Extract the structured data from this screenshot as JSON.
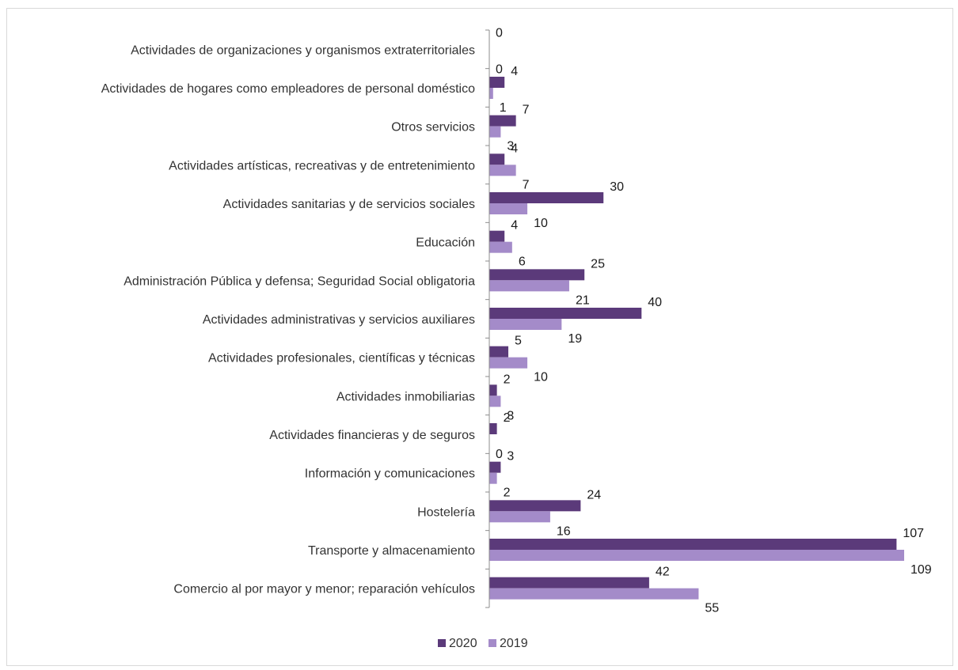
{
  "chart_data": {
    "type": "bar",
    "orientation": "horizontal",
    "title": "",
    "xlabel": "",
    "ylabel": "",
    "xlim": [
      0,
      112
    ],
    "grid": false,
    "legend_position": "bottom",
    "categories": [
      "Actividades de organizaciones y organismos extraterritoriales",
      "Actividades de hogares como empleadores de personal doméstico",
      "Otros servicios",
      "Actividades artísticas, recreativas y de entretenimiento",
      "Actividades sanitarias y de servicios sociales",
      "Educación",
      "Administración Pública y defensa; Seguridad Social obligatoria",
      "Actividades administrativas y servicios auxiliares",
      "Actividades profesionales, científicas y técnicas",
      "Actividades inmobiliarias",
      "Actividades financieras y de seguros",
      "Información y comunicaciones",
      "Hostelería",
      "Transporte y almacenamiento",
      "Comercio al por mayor y menor; reparación vehículos"
    ],
    "series": [
      {
        "name": "2020",
        "color": "#5b3a7a",
        "values": [
          0,
          4,
          7,
          4,
          30,
          4,
          25,
          40,
          5,
          2,
          2,
          3,
          24,
          107,
          42
        ]
      },
      {
        "name": "2019",
        "color": "#a48bc9",
        "values": [
          0,
          1,
          3,
          7,
          10,
          6,
          21,
          19,
          10,
          3,
          0,
          2,
          16,
          109,
          55
        ]
      }
    ]
  }
}
